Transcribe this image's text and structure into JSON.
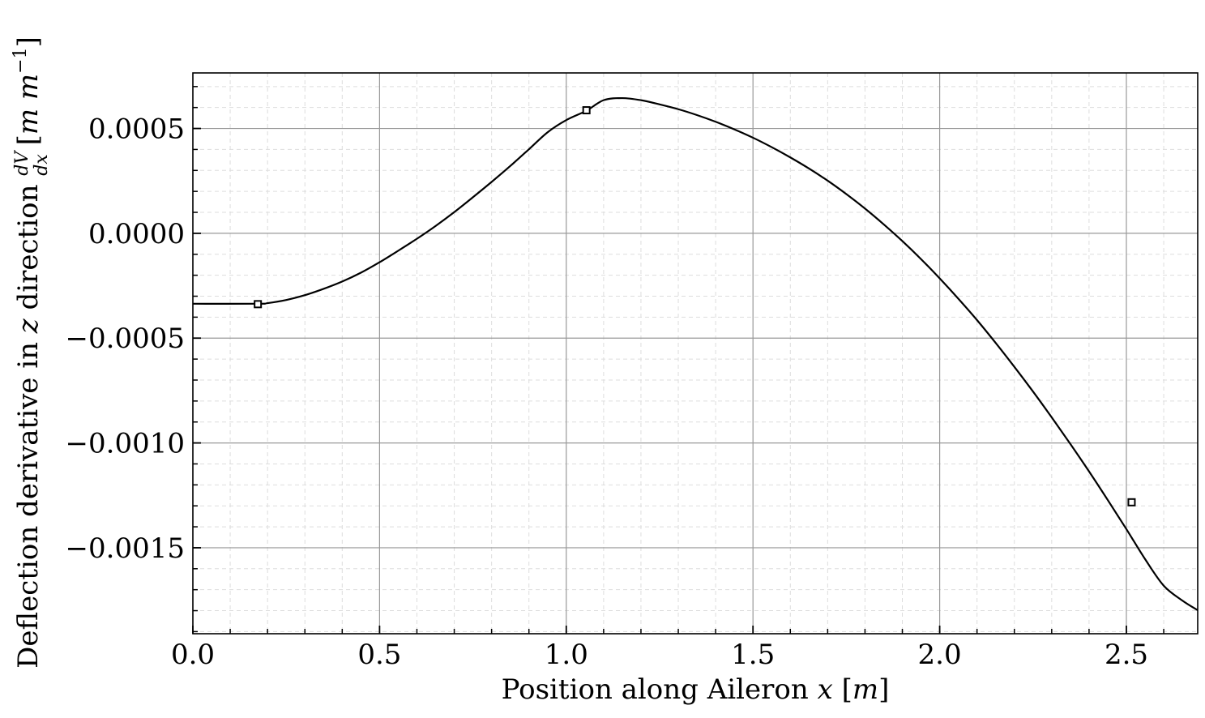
{
  "chart_data": {
    "type": "line",
    "title": "",
    "xlabel": "Position along Aileron x [m]",
    "ylabel": "Deflection derivative  in z direction dV/dx [m m^-1]",
    "xlim": [
      0.0,
      2.691
    ],
    "ylim": [
      -0.00191,
      0.000765
    ],
    "x_ticks": [
      0.0,
      0.5,
      1.0,
      1.5,
      2.0,
      2.5
    ],
    "x_tick_labels": [
      "0.0",
      "0.5",
      "1.0",
      "1.5",
      "2.0",
      "2.5"
    ],
    "y_ticks": [
      0.0005,
      0.0,
      -0.0005,
      -0.001,
      -0.0015
    ],
    "y_tick_labels": [
      "0.0005",
      "0.0000",
      "−0.0005",
      "−0.0010",
      "−0.0015"
    ],
    "x_minor_step": 0.1,
    "y_minor_step": 0.0001,
    "grid": true,
    "legend": "none",
    "colors": {
      "line": "#000000",
      "major_grid": "#999999",
      "minor_grid": "#dddddd"
    },
    "series": [
      {
        "x": [
          0.0,
          0.174,
          0.2,
          0.25,
          0.3,
          0.35,
          0.4,
          0.45,
          0.5,
          0.55,
          0.6,
          0.65,
          0.7,
          0.75,
          0.8,
          0.85,
          0.9,
          0.95,
          1.0,
          1.054,
          1.1,
          1.15,
          1.2,
          1.25,
          1.3,
          1.35,
          1.4,
          1.45,
          1.5,
          1.55,
          1.6,
          1.65,
          1.7,
          1.75,
          1.8,
          1.85,
          1.9,
          1.95,
          2.0,
          2.05,
          2.1,
          2.15,
          2.2,
          2.25,
          2.3,
          2.35,
          2.4,
          2.45,
          2.5,
          2.55,
          2.6,
          2.65,
          2.691
        ],
        "y": [
          -0.000336,
          -0.000336,
          -0.000333,
          -0.000318,
          -0.000295,
          -0.000265,
          -0.00023,
          -0.000188,
          -0.000138,
          -8.3e-05,
          -2.6e-05,
          3.5e-05,
          0.000101,
          0.000172,
          0.000245,
          0.000321,
          0.000401,
          0.000482,
          0.00054,
          0.000585,
          0.000635,
          0.000645,
          0.000635,
          0.000615,
          0.000592,
          0.000564,
          0.000532,
          0.000496,
          0.000456,
          0.000411,
          0.000362,
          0.000309,
          0.000251,
          0.000187,
          0.000118,
          4.3e-05,
          -3.7e-05,
          -0.000123,
          -0.000215,
          -0.000312,
          -0.000414,
          -0.000523,
          -0.000637,
          -0.000755,
          -0.000878,
          -0.001005,
          -0.001136,
          -0.001272,
          -0.001411,
          -0.001554,
          -0.001681,
          -0.001752,
          -0.001798
        ]
      }
    ],
    "markers": [
      {
        "x": 0.174,
        "y": -0.000338
      },
      {
        "x": 1.054,
        "y": 0.000587
      },
      {
        "x": 2.514,
        "y": -0.001283
      }
    ]
  }
}
